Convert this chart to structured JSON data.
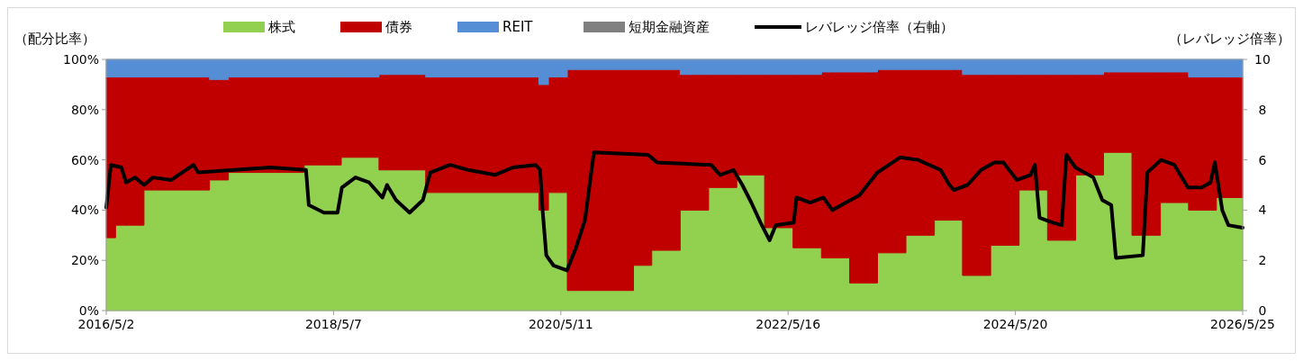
{
  "chart_data": {
    "type": "area",
    "stacked": true,
    "ylabel": "（配分比率）",
    "y2label": "（レバレッジ倍率）",
    "legend": "top",
    "xlim": [
      "2016-05-02",
      "2026-05-25"
    ],
    "xticks": [
      {
        "value": "2016-05-02",
        "label": "2016/5/2"
      },
      {
        "value": "2018-05-07",
        "label": "2018/5/7"
      },
      {
        "value": "2020-05-11",
        "label": "2020/5/11"
      },
      {
        "value": "2022-05-16",
        "label": "2022/5/16"
      },
      {
        "value": "2024-05-20",
        "label": "2024/5/20"
      },
      {
        "value": "2026-05-25",
        "label": "2026/5/25"
      }
    ],
    "ylim": [
      0,
      100
    ],
    "yticks": [
      {
        "value": 0,
        "label": "0%"
      },
      {
        "value": 20,
        "label": "20%"
      },
      {
        "value": 40,
        "label": "40%"
      },
      {
        "value": 60,
        "label": "60%"
      },
      {
        "value": 80,
        "label": "80%"
      },
      {
        "value": 100,
        "label": "100%"
      }
    ],
    "y2lim": [
      0,
      10
    ],
    "y2ticks": [
      0,
      2,
      4,
      6,
      8,
      10
    ],
    "x": [
      "2016-05-02",
      "2016-06",
      "2016-09",
      "2017-04",
      "2017-06",
      "2018-02",
      "2018-06",
      "2018-10",
      "2019-03",
      "2020-03",
      "2020-04",
      "2020-06",
      "2021-01",
      "2021-03",
      "2021-06",
      "2021-09",
      "2021-12",
      "2022-03",
      "2022-06",
      "2022-09",
      "2022-12",
      "2023-03",
      "2023-06",
      "2023-09",
      "2023-12",
      "2024-03",
      "2024-06",
      "2024-09",
      "2024-12",
      "2025-03",
      "2025-06",
      "2025-09",
      "2025-12",
      "2026-03",
      "2026-05-25"
    ],
    "series": [
      {
        "name": "株式",
        "color": "#92d050",
        "values": [
          29,
          34,
          48,
          52,
          55,
          58,
          61,
          56,
          47,
          40,
          47,
          8,
          18,
          24,
          40,
          49,
          54,
          33,
          25,
          21,
          11,
          23,
          30,
          36,
          14,
          26,
          48,
          28,
          54,
          63,
          30,
          43,
          40,
          45,
          45
        ]
      },
      {
        "name": "債券",
        "color": "#c00000",
        "values": [
          64,
          59,
          45,
          40,
          38,
          35,
          32,
          38,
          46,
          50,
          46,
          88,
          78,
          72,
          54,
          45,
          40,
          61,
          69,
          74,
          84,
          73,
          66,
          60,
          80,
          68,
          46,
          66,
          40,
          32,
          65,
          52,
          53,
          48,
          48
        ]
      },
      {
        "name": "REIT",
        "color": "#558ed5",
        "values": [
          7,
          7,
          7,
          8,
          7,
          7,
          7,
          6,
          7,
          10,
          7,
          4,
          4,
          4,
          6,
          6,
          6,
          6,
          6,
          5,
          5,
          4,
          4,
          4,
          6,
          6,
          6,
          6,
          6,
          5,
          5,
          5,
          7,
          7,
          7
        ]
      },
      {
        "name": "短期金融資産",
        "color": "#808080",
        "values": [
          null,
          null,
          null,
          null,
          null,
          null,
          null,
          null,
          null,
          null,
          null,
          null,
          null,
          null,
          null,
          null,
          null,
          null,
          null,
          null,
          null,
          null,
          null,
          null,
          null,
          null,
          null,
          null,
          null,
          null,
          null,
          null,
          null,
          null,
          null
        ]
      },
      {
        "name": "レバレッジ倍率（右軸）",
        "type": "line",
        "axis": "y2",
        "color": "#000000",
        "line_style": "solid",
        "marker": "none",
        "x": [
          "2016-05-02",
          "2016-05-17",
          "2016-06-20",
          "2016-07-05",
          "2016-08-03",
          "2016-09-01",
          "2016-09-30",
          "2016-11-28",
          "2017-02-08",
          "2017-02-23",
          "2017-06-19",
          "2017-10-14",
          "2018-02-07",
          "2018-02-16",
          "2018-04-06",
          "2018-05-20",
          "2018-06-03",
          "2018-07-17",
          "2018-08-30",
          "2018-10-12",
          "2018-10-27",
          "2018-11-25",
          "2019-01-08",
          "2019-02-20",
          "2019-03-16",
          "2019-05-19",
          "2019-07-16",
          "2019-10-11",
          "2019-12-08",
          "2020-02-19",
          "2020-03-05",
          "2020-03-13",
          "2020-03-25",
          "2020-04-17",
          "2020-05-31",
          "2020-06-29",
          "2020-07-28",
          "2020-08-26",
          "2021-02-17",
          "2021-03-18",
          "2021-09-09",
          "2021-10-08",
          "2021-11-20",
          "2021-12-19",
          "2022-01-17",
          "2022-02-16",
          "2022-03-17",
          "2022-04-06",
          "2022-06-03",
          "2022-06-12",
          "2022-07-26",
          "2022-09-07",
          "2022-10-06",
          "2022-11-19",
          "2023-01-02",
          "2023-03-01",
          "2023-05-13",
          "2023-07-10",
          "2023-09-21",
          "2023-10-20",
          "2023-11-03",
          "2023-12-17",
          "2024-01-30",
          "2024-03-13",
          "2024-04-11",
          "2024-05-25",
          "2024-07-08",
          "2024-07-22",
          "2024-08-06",
          "2024-09-18",
          "2024-10-17",
          "2024-11-01",
          "2024-11-30",
          "2025-01-27",
          "2025-02-25",
          "2025-03-26",
          "2025-04-10",
          "2025-07-06",
          "2025-07-21",
          "2025-09-03",
          "2025-10-16",
          "2025-11-29",
          "2026-01-12",
          "2026-02-10",
          "2026-02-24",
          "2026-03-20",
          "2026-04-09",
          "2026-05-25"
        ],
        "values": [
          4.1,
          5.8,
          5.7,
          5.1,
          5.3,
          5.0,
          5.3,
          5.2,
          5.8,
          5.5,
          5.6,
          5.7,
          5.6,
          4.2,
          3.9,
          3.9,
          4.9,
          5.3,
          5.1,
          4.5,
          5.0,
          4.4,
          3.9,
          4.4,
          5.5,
          5.8,
          5.6,
          5.4,
          5.7,
          5.8,
          5.6,
          4.0,
          2.2,
          1.8,
          1.6,
          2.5,
          3.6,
          6.3,
          6.2,
          5.9,
          5.8,
          5.4,
          5.6,
          5.0,
          4.3,
          3.5,
          2.8,
          3.4,
          3.5,
          4.5,
          4.3,
          4.5,
          4.0,
          4.3,
          4.6,
          5.5,
          6.1,
          6.0,
          5.6,
          5.0,
          4.8,
          5.0,
          5.6,
          5.9,
          5.9,
          5.2,
          5.4,
          5.8,
          3.7,
          3.5,
          3.4,
          6.2,
          5.7,
          5.3,
          4.4,
          4.2,
          2.1,
          2.2,
          5.5,
          6.0,
          5.8,
          4.9,
          4.9,
          5.1,
          5.9,
          4.0,
          3.4,
          3.3
        ]
      }
    ]
  }
}
